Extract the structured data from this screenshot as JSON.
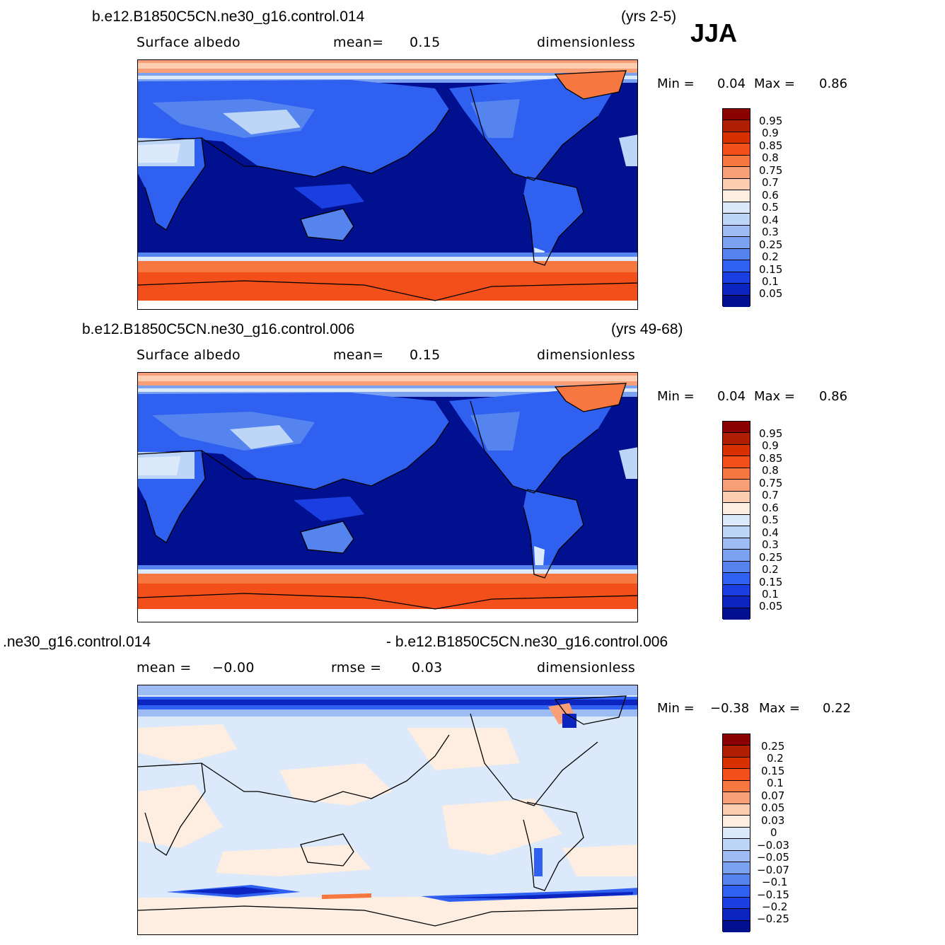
{
  "season": "JJA",
  "panels": [
    {
      "case": "b.e12.B1850C5CN.ne30_g16.control.014",
      "years": "(yrs 2-5)",
      "variable": "Surface albedo",
      "mean_label": "mean=",
      "mean_value": "0.15",
      "units": "dimensionless",
      "min_label": "Min =",
      "min_value": "0.04",
      "max_label": "Max =",
      "max_value": "0.86",
      "colorbar_labels": [
        "0.95",
        "0.9",
        "0.85",
        "0.8",
        "0.75",
        "0.7",
        "0.6",
        "0.5",
        "0.4",
        "0.3",
        "0.25",
        "0.2",
        "0.15",
        "0.1",
        "0.05"
      ]
    },
    {
      "case": "b.e12.B1850C5CN.ne30_g16.control.006",
      "years": "(yrs 49-68)",
      "variable": "Surface albedo",
      "mean_label": "mean=",
      "mean_value": "0.15",
      "units": "dimensionless",
      "min_label": "Min =",
      "min_value": "0.04",
      "max_label": "Max =",
      "max_value": "0.86",
      "colorbar_labels": [
        "0.95",
        "0.9",
        "0.85",
        "0.8",
        "0.75",
        "0.7",
        "0.6",
        "0.5",
        "0.4",
        "0.3",
        "0.25",
        "0.2",
        "0.15",
        "0.1",
        "0.05"
      ]
    },
    {
      "case_left": ".ne30_g16.control.014",
      "case_right": "- b.e12.B1850C5CN.ne30_g16.control.006",
      "mean_label": "mean =",
      "mean_value": "−0.00",
      "rmse_label": "rmse =",
      "rmse_value": "0.03",
      "units": "dimensionless",
      "min_label": "Min =",
      "min_value": "−0.38",
      "max_label": "Max =",
      "max_value": "0.22",
      "colorbar_labels": [
        "0.25",
        "0.2",
        "0.15",
        "0.1",
        "0.07",
        "0.05",
        "0.03",
        "0",
        "−0.03",
        "−0.05",
        "−0.07",
        "−0.1",
        "−0.15",
        "−0.2",
        "−0.25"
      ]
    }
  ],
  "colorbars": {
    "albedo_colors": [
      "#8b0000",
      "#b01e00",
      "#d83000",
      "#f24f1b",
      "#f6773f",
      "#f99f78",
      "#fccdb0",
      "#fdeee1",
      "#dce9fa",
      "#bdd5f7",
      "#9dbcf4",
      "#7aa2f1",
      "#5584ee",
      "#2f60f0",
      "#1a3ee0",
      "#0c25c0",
      "#00108f"
    ],
    "diff_colors": [
      "#8b0000",
      "#b01e00",
      "#d83000",
      "#f24f1b",
      "#f6773f",
      "#f99f78",
      "#fccdb0",
      "#fdeee1",
      "#dce9fa",
      "#bdd5f7",
      "#9dbcf4",
      "#7aa2f1",
      "#5584ee",
      "#2f60f0",
      "#1a3ee0",
      "#0c25c0",
      "#00108f"
    ]
  }
}
